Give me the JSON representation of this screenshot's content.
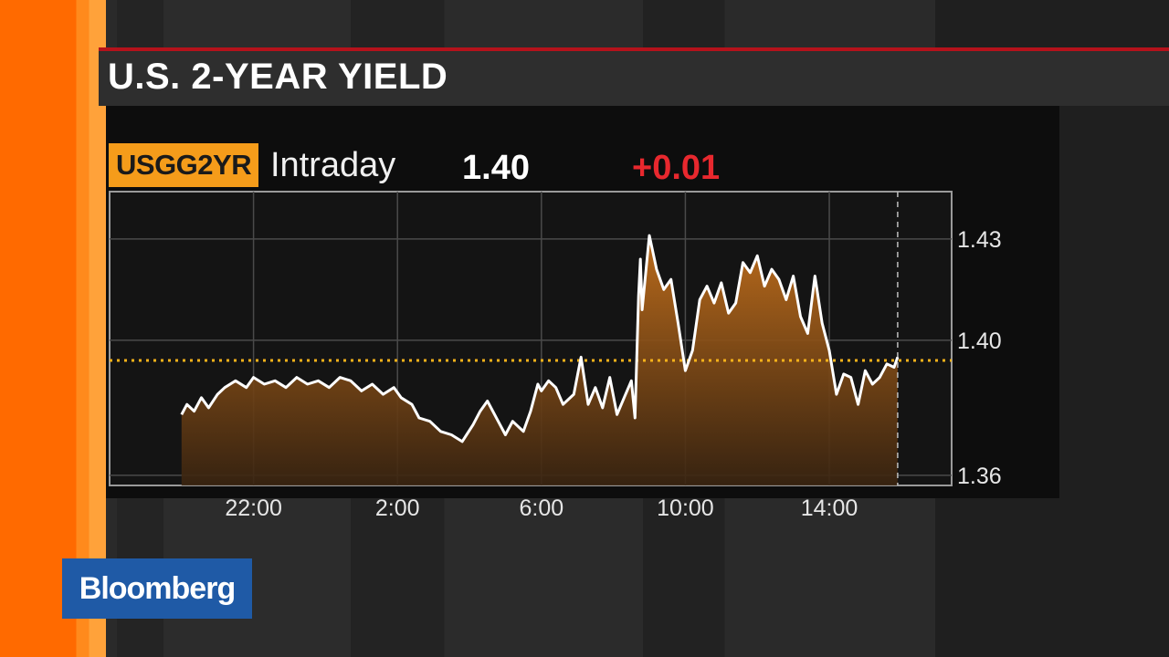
{
  "title": "U.S. 2-YEAR YIELD",
  "ticker": "USGG2YR",
  "period": "Intraday",
  "last_value": "1.40",
  "change": "+0.01",
  "brand": "Bloomberg",
  "colors": {
    "accent_orange": "#f59c1a",
    "change_red": "#e8282e",
    "line": "#ffffff",
    "reference_line": "#f5b21a",
    "brand_blue": "#1f5aa6"
  },
  "chart_data": {
    "type": "area",
    "title": "U.S. 2-YEAR YIELD",
    "xlabel": "",
    "ylabel": "",
    "x_ticks": [
      "22:00",
      "2:00",
      "6:00",
      "10:00",
      "14:00"
    ],
    "x_tick_hours": [
      22,
      26,
      30,
      34,
      38
    ],
    "y_ticks": [
      "1.43",
      "1.40",
      "1.36"
    ],
    "y_tick_values": [
      1.43,
      1.4,
      1.36
    ],
    "xlim_hours": [
      18,
      41.4
    ],
    "ylim": [
      1.357,
      1.444
    ],
    "reference_level": 1.394,
    "current_marker_hour": 39.9,
    "grid": true,
    "x": [
      20.0,
      20.15,
      20.35,
      20.55,
      20.75,
      21.0,
      21.2,
      21.5,
      21.8,
      22.0,
      22.3,
      22.6,
      22.9,
      23.2,
      23.5,
      23.8,
      24.1,
      24.4,
      24.7,
      25.0,
      25.3,
      25.6,
      25.9,
      26.1,
      26.4,
      26.6,
      26.9,
      27.2,
      27.5,
      27.8,
      28.1,
      28.3,
      28.5,
      28.8,
      29.0,
      29.2,
      29.5,
      29.7,
      29.9,
      30.0,
      30.2,
      30.4,
      30.6,
      30.9,
      31.1,
      31.3,
      31.5,
      31.7,
      31.9,
      32.1,
      32.3,
      32.5,
      32.6,
      32.7,
      32.75,
      32.8,
      33.0,
      33.2,
      33.4,
      33.6,
      33.8,
      34.0,
      34.2,
      34.4,
      34.6,
      34.8,
      35.0,
      35.2,
      35.4,
      35.6,
      35.8,
      36.0,
      36.2,
      36.4,
      36.6,
      36.8,
      37.0,
      37.2,
      37.4,
      37.6,
      37.8,
      38.0,
      38.2,
      38.4,
      38.6,
      38.8,
      39.0,
      39.2,
      39.4,
      39.6,
      39.8,
      39.9
    ],
    "values": [
      1.378,
      1.381,
      1.379,
      1.383,
      1.38,
      1.384,
      1.386,
      1.388,
      1.386,
      1.389,
      1.387,
      1.388,
      1.386,
      1.389,
      1.387,
      1.388,
      1.386,
      1.389,
      1.388,
      1.385,
      1.387,
      1.384,
      1.386,
      1.383,
      1.381,
      1.377,
      1.376,
      1.373,
      1.372,
      1.37,
      1.375,
      1.379,
      1.382,
      1.376,
      1.372,
      1.376,
      1.373,
      1.379,
      1.387,
      1.385,
      1.388,
      1.386,
      1.381,
      1.384,
      1.395,
      1.381,
      1.386,
      1.38,
      1.389,
      1.378,
      1.383,
      1.388,
      1.377,
      1.413,
      1.424,
      1.409,
      1.431,
      1.421,
      1.415,
      1.418,
      1.405,
      1.391,
      1.397,
      1.412,
      1.416,
      1.411,
      1.417,
      1.408,
      1.411,
      1.423,
      1.42,
      1.425,
      1.416,
      1.421,
      1.418,
      1.412,
      1.419,
      1.407,
      1.402,
      1.419,
      1.405,
      1.397,
      1.384,
      1.39,
      1.389,
      1.381,
      1.391,
      1.387,
      1.389,
      1.393,
      1.392,
      1.395
    ]
  }
}
